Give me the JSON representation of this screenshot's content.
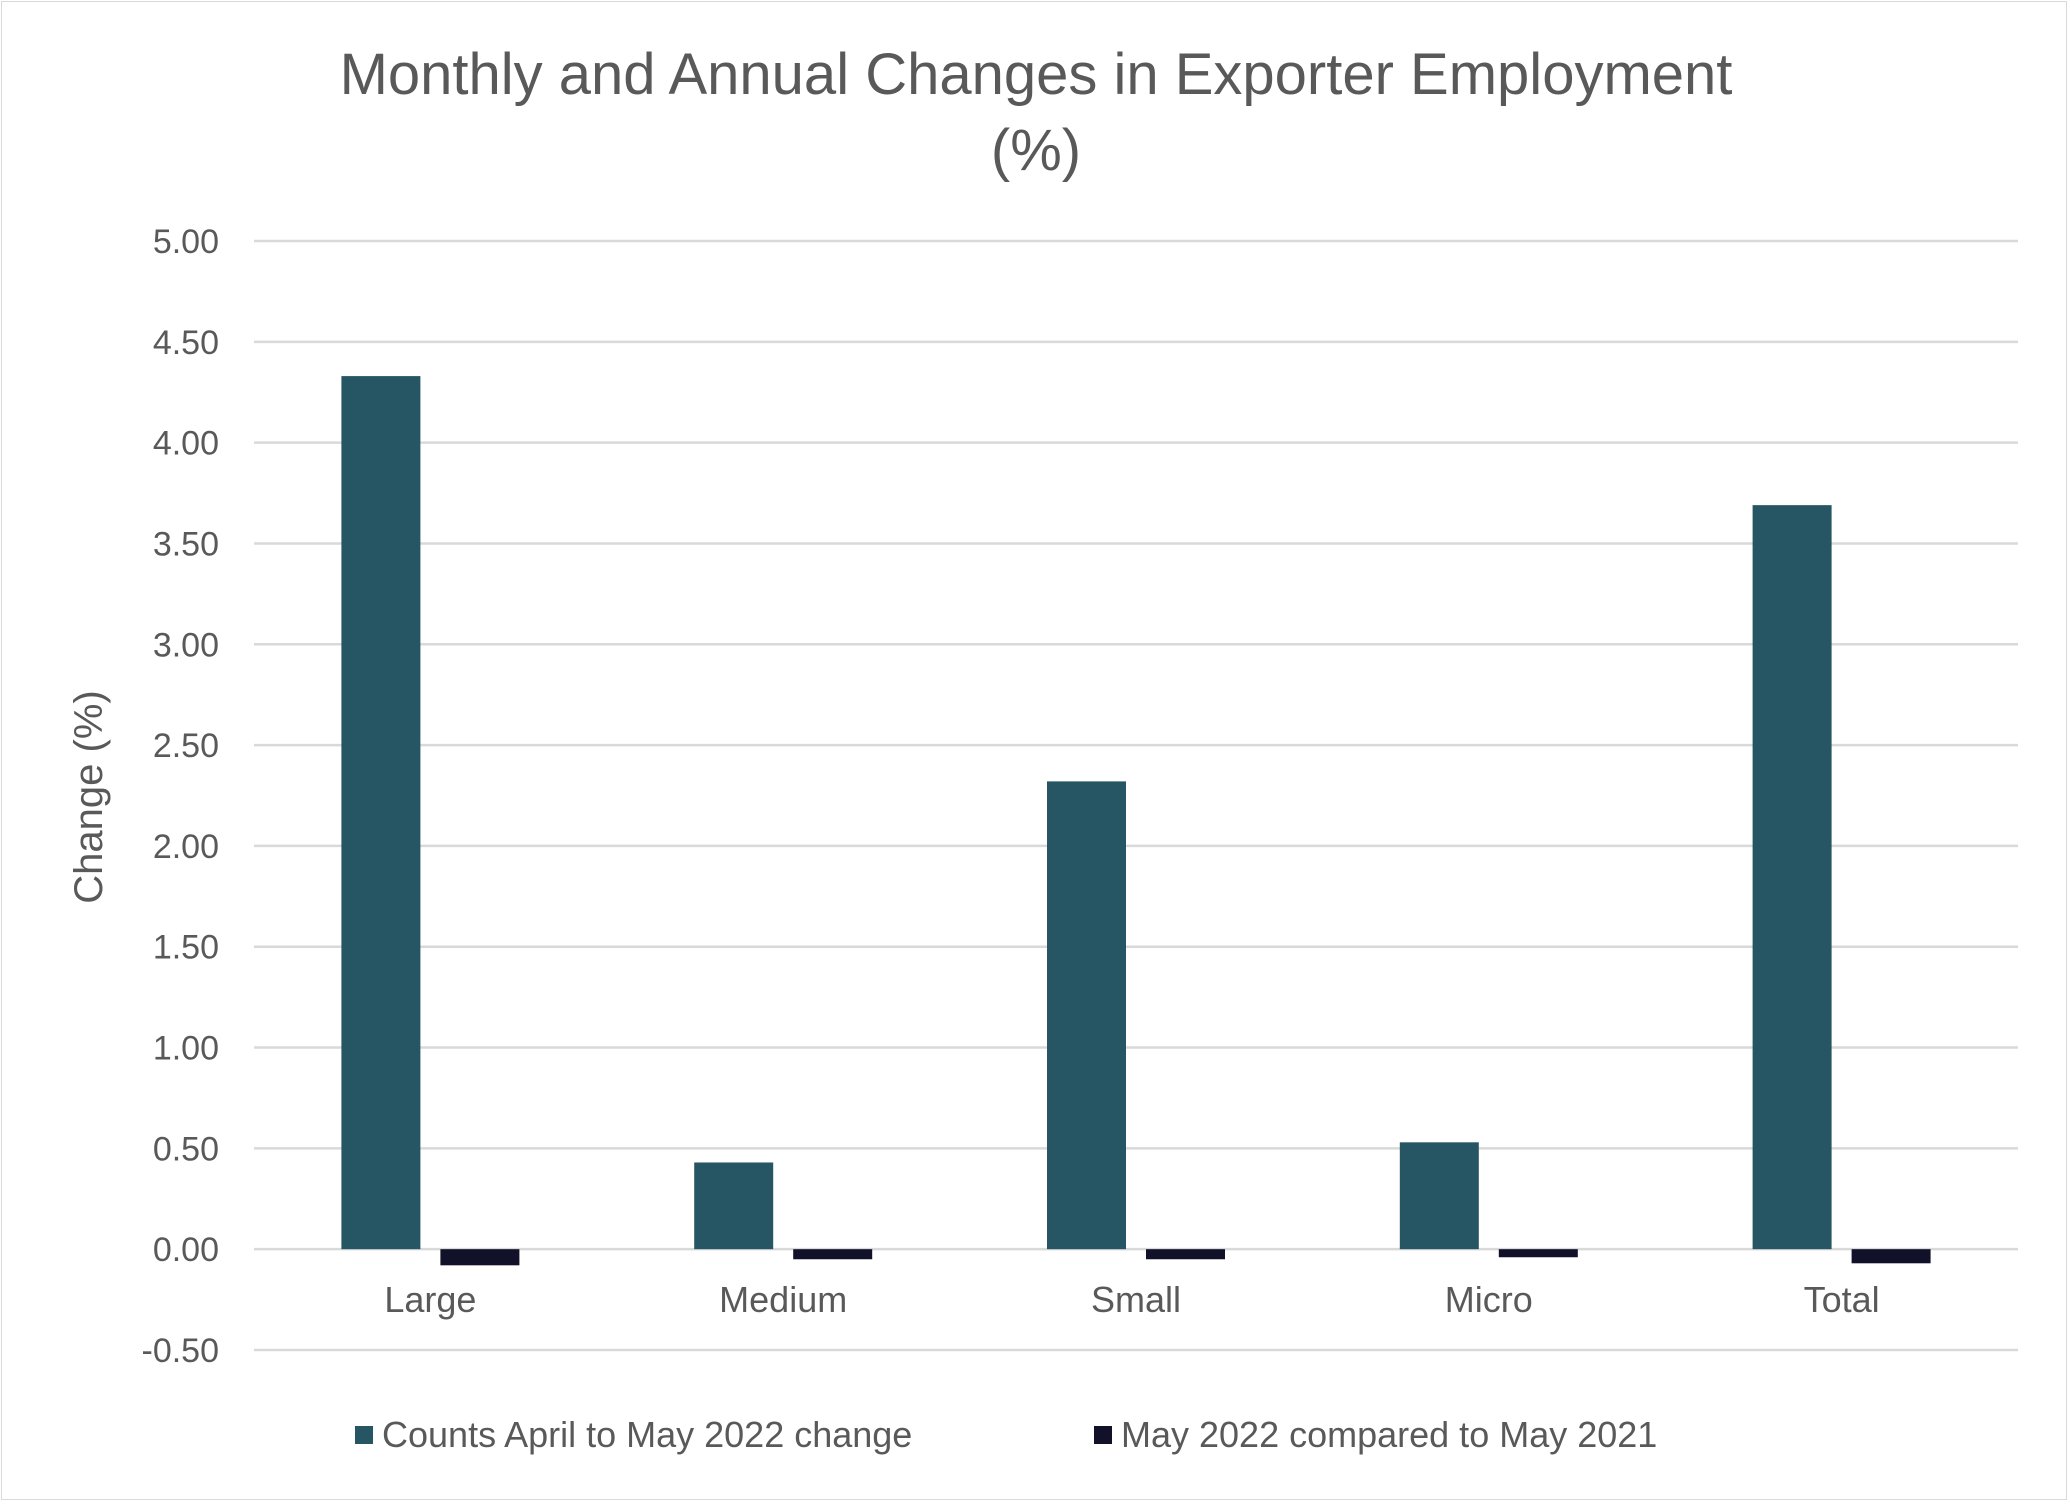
{
  "chart_data": {
    "type": "bar",
    "title": "Monthly and Annual Changes in Exporter Employment (%)",
    "title_lines": [
      "Monthly and Annual Changes in Exporter Employment",
      "(%)"
    ],
    "xlabel": "",
    "ylabel": "Change (%)",
    "ylim": [
      -0.5,
      5.0
    ],
    "yticks": [
      "-0.50",
      "0.00",
      "0.50",
      "1.00",
      "1.50",
      "2.00",
      "2.50",
      "3.00",
      "3.50",
      "4.00",
      "4.50",
      "5.00"
    ],
    "grid": true,
    "legend_position": "bottom",
    "categories": [
      "Large",
      "Medium",
      "Small",
      "Micro",
      "Total"
    ],
    "series": [
      {
        "name": "Counts April to May 2022 change",
        "color": "#265664",
        "values": [
          4.33,
          0.43,
          2.32,
          0.53,
          3.69
        ]
      },
      {
        "name": "May 2022 compared to May 2021",
        "color": "#11112a",
        "values": [
          -0.08,
          -0.05,
          -0.05,
          -0.04,
          -0.07
        ]
      }
    ]
  }
}
